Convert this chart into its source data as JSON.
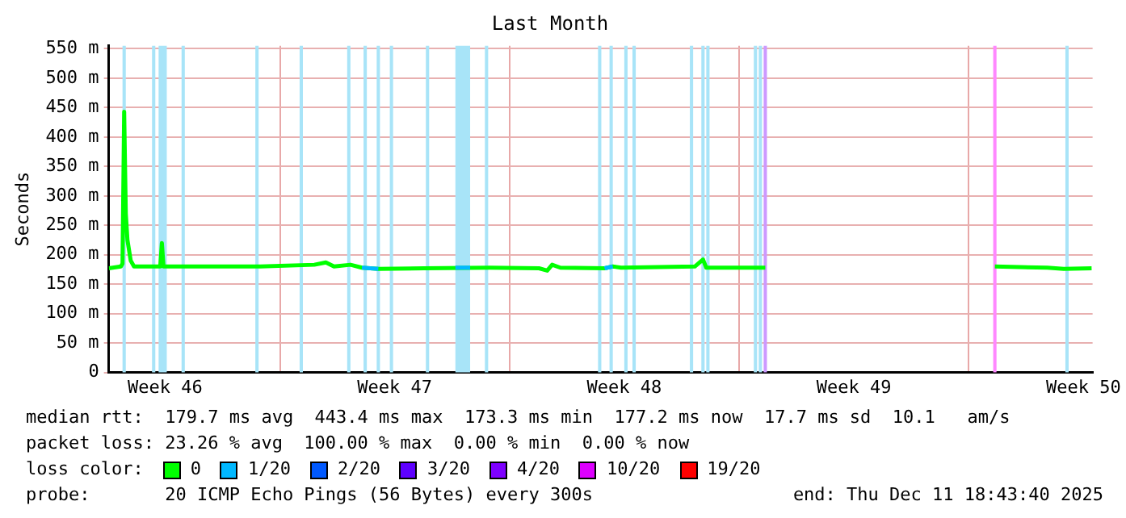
{
  "chart_data": {
    "type": "line",
    "title": "Last Month",
    "ylabel": "Seconds",
    "legend_title": "loss color:",
    "legend": "bottom",
    "grid": true,
    "marker": "none",
    "line_style": "solid",
    "xlim": [
      "2025-11-11T18:43",
      "2025-12-11T18:43"
    ],
    "xticks": [
      {
        "value": "2025-11-13T12:00",
        "label": "Week 46"
      },
      {
        "value": "2025-11-17T00:00",
        "label": null
      },
      {
        "value": "2025-11-20T12:00",
        "label": "Week 47"
      },
      {
        "value": "2025-11-24T00:00",
        "label": null
      },
      {
        "value": "2025-11-27T12:00",
        "label": "Week 48"
      },
      {
        "value": "2025-12-01T00:00",
        "label": null
      },
      {
        "value": "2025-12-04T12:00",
        "label": "Week 49"
      },
      {
        "value": "2025-12-08T00:00",
        "label": null
      },
      {
        "value": "2025-12-11T12:00",
        "label": "Week 50"
      }
    ],
    "ylim": [
      0,
      555
    ],
    "yticks": [
      {
        "value": 0,
        "label": "0"
      },
      {
        "value": 50,
        "label": "50 m"
      },
      {
        "value": 100,
        "label": "100 m"
      },
      {
        "value": 150,
        "label": "150 m"
      },
      {
        "value": 200,
        "label": "200 m"
      },
      {
        "value": 250,
        "label": "250 m"
      },
      {
        "value": 300,
        "label": "300 m"
      },
      {
        "value": 350,
        "label": "350 m"
      },
      {
        "value": 400,
        "label": "400 m"
      },
      {
        "value": 450,
        "label": "450 m"
      },
      {
        "value": 500,
        "label": "500 m"
      },
      {
        "value": 550,
        "label": "550 m"
      }
    ],
    "series": [
      {
        "name": "0",
        "color": "#00ff00",
        "x": [
          "2025-11-11T18:43",
          "2025-11-12T03:36",
          "2025-11-12T04:48",
          "2025-11-12T06:00",
          "2025-11-12T07:12",
          "2025-11-12T08:24",
          "2025-11-12T10:48",
          "2025-11-12T13:12",
          "2025-11-13T08:24",
          "2025-11-13T09:36",
          "2025-11-13T10:48",
          "2025-11-16T09:36",
          "2025-11-18T01:12",
          "2025-11-18T09:36",
          "2025-11-18T15:36",
          "2025-11-19T03:36",
          "2025-11-19T12:00",
          "2025-11-20T00:00",
          "2025-11-21T09:36",
          "2025-11-23T09:36",
          "2025-11-24T21:36",
          "2025-11-25T03:36",
          "2025-11-25T07:12",
          "2025-11-25T13:12",
          "2025-11-26T21:36",
          "2025-11-27T03:36",
          "2025-11-27T09:36",
          "2025-11-29T15:36",
          "2025-11-29T21:36",
          "2025-11-30T00:00",
          "2025-12-01T19:12",
          "2025-12-05T00:00",
          "2025-12-08T19:12",
          "2025-12-10T09:36",
          "2025-12-10T21:36",
          "2025-12-11T18:00"
        ],
        "values": [
          177,
          180,
          185,
          443,
          270,
          225,
          190,
          180,
          180,
          220,
          180,
          180,
          183,
          187,
          180,
          183,
          178,
          176,
          177,
          178,
          177,
          173,
          183,
          178,
          177,
          180,
          178,
          180,
          192,
          178,
          178,
          null,
          180,
          178,
          176,
          177
        ]
      },
      {
        "name": "1/20",
        "color": "#00b8ff",
        "x": [
          "2025-11-19T12:00",
          "2025-11-20T00:00",
          "2025-11-21T00:00",
          "2025-11-22T08:24",
          "2025-11-22T19:12",
          "2025-11-25T00:00",
          "2025-11-26T21:36",
          "2025-11-27T03:36"
        ],
        "values": [
          178,
          176,
          null,
          178,
          178,
          null,
          177,
          180
        ]
      },
      {
        "name": "2/20",
        "color": "#0059ff"
      },
      {
        "name": "3/20",
        "color": "#5e00ff"
      },
      {
        "name": "4/20",
        "color": "#7e00ff"
      },
      {
        "name": "10/20",
        "color": "#dd00ff"
      },
      {
        "name": "19/20",
        "color": "#ff0000"
      }
    ],
    "bands": [
      {
        "axis": "x",
        "from": "2025-11-12T04:48",
        "to": "2025-11-12T07:12",
        "color": "#a8e4f8"
      },
      {
        "axis": "x",
        "from": "2025-11-13T02:24",
        "to": "2025-11-13T04:48",
        "color": "#a8e4f8"
      },
      {
        "axis": "x",
        "from": "2025-11-13T07:12",
        "to": "2025-11-13T13:12",
        "color": "#a8e4f8"
      },
      {
        "axis": "x",
        "from": "2025-11-14T00:00",
        "to": "2025-11-14T02:24",
        "color": "#a8e4f8"
      },
      {
        "axis": "x",
        "from": "2025-11-16T06:00",
        "to": "2025-11-16T08:24",
        "color": "#a8e4f8"
      },
      {
        "axis": "x",
        "from": "2025-11-17T14:24",
        "to": "2025-11-17T16:48",
        "color": "#a8e4f8"
      },
      {
        "axis": "x",
        "from": "2025-11-19T01:12",
        "to": "2025-11-19T03:36",
        "color": "#a8e4f8"
      },
      {
        "axis": "x",
        "from": "2025-11-19T13:12",
        "to": "2025-11-19T15:36",
        "color": "#a8e4f8"
      },
      {
        "axis": "x",
        "from": "2025-11-19T22:48",
        "to": "2025-11-20T01:12",
        "color": "#a8e4f8"
      },
      {
        "axis": "x",
        "from": "2025-11-20T08:24",
        "to": "2025-11-20T10:48",
        "color": "#a8e4f8"
      },
      {
        "axis": "x",
        "from": "2025-11-21T10:48",
        "to": "2025-11-21T13:12",
        "color": "#a8e4f8"
      },
      {
        "axis": "x",
        "from": "2025-11-22T08:24",
        "to": "2025-11-22T19:12",
        "color": "#a8e4f8"
      },
      {
        "axis": "x",
        "from": "2025-11-23T06:00",
        "to": "2025-11-23T08:24",
        "color": "#a8e4f8"
      },
      {
        "axis": "x",
        "from": "2025-11-26T16:48",
        "to": "2025-11-26T19:12",
        "color": "#a8e4f8"
      },
      {
        "axis": "x",
        "from": "2025-11-27T01:12",
        "to": "2025-11-27T03:36",
        "color": "#a8e4f8"
      },
      {
        "axis": "x",
        "from": "2025-11-27T12:00",
        "to": "2025-11-27T14:24",
        "color": "#a8e4f8"
      },
      {
        "axis": "x",
        "from": "2025-11-27T18:00",
        "to": "2025-11-27T20:24",
        "color": "#a8e4f8"
      },
      {
        "axis": "x",
        "from": "2025-11-29T12:00",
        "to": "2025-11-29T14:24",
        "color": "#a8e4f8"
      },
      {
        "axis": "x",
        "from": "2025-11-29T20:24",
        "to": "2025-11-29T22:48",
        "color": "#a8e4f8"
      },
      {
        "axis": "x",
        "from": "2025-11-30T00:00",
        "to": "2025-11-30T02:24",
        "color": "#a8e4f8"
      },
      {
        "axis": "x",
        "from": "2025-12-01T10:48",
        "to": "2025-12-01T13:12",
        "color": "#a8e4f8"
      },
      {
        "axis": "x",
        "from": "2025-12-01T14:24",
        "to": "2025-12-01T16:48",
        "color": "#a8e4f8"
      },
      {
        "axis": "x",
        "from": "2025-12-01T18:00",
        "to": "2025-12-01T20:24",
        "color": "#cc99ff"
      },
      {
        "axis": "x",
        "from": "2025-12-08T18:00",
        "to": "2025-12-08T20:24",
        "color": "#ff88ff"
      },
      {
        "axis": "x",
        "from": "2025-12-10T22:48",
        "to": "2025-12-11T01:12",
        "color": "#a8e4f8"
      }
    ],
    "annotations": [
      "median rtt:  179.7 ms avg  443.4 ms max  173.3 ms min  177.2 ms now  17.7 ms sd  10.1   am/s",
      "packet loss: 23.26 % avg  100.00 % max  0.00 % min  0.00 % now",
      "probe:       20 ICMP Echo Pings (56 Bytes) every 300s",
      "end: Thu Dec 11 18:43:40 2025"
    ]
  }
}
